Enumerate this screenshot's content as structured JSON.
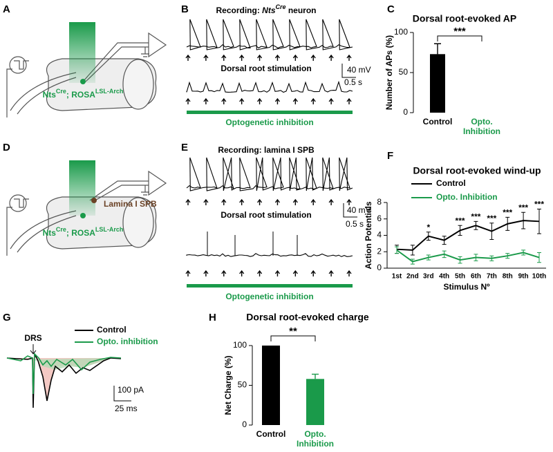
{
  "panel_labels": [
    "A",
    "B",
    "C",
    "D",
    "E",
    "F",
    "G",
    "H"
  ],
  "panel_a": {
    "genotype_parts": [
      "Nts",
      "Cre",
      "; ROSA",
      "LSL-Arch"
    ]
  },
  "panel_b": {
    "title_parts": [
      "Recording: ",
      "Nts",
      "Cre",
      " neuron"
    ],
    "stimulation": "Dorsal root stimulation",
    "scale_v": "40 mV",
    "scale_t": "0.5 s",
    "inhibition": "Optogenetic inhibition"
  },
  "panel_d": {
    "genotype_parts": [
      "Nts",
      "Cre",
      "; ROSA",
      "LSL-Arch"
    ],
    "cell": "Lamina I SPB"
  },
  "panel_e": {
    "title": "Recording: lamina I SPB",
    "stimulation": "Dorsal root stimulation",
    "scale_v": "40 mV",
    "scale_t": "0.5 s",
    "inhibition": "Optogenetic inhibition"
  },
  "panel_g": {
    "marker": "DRS",
    "legend": [
      "Control",
      "Opto. inhibition"
    ],
    "scale_i": "100 pA",
    "scale_t": "25 ms"
  },
  "chart_data": [
    {
      "type": "bar",
      "title": "Dorsal root-evoked AP",
      "y_label": "Number of APs (%)",
      "categories": [
        "Control",
        "Opto. Inhibition"
      ],
      "values": [
        73,
        0
      ],
      "errors": [
        13,
        null
      ],
      "colors": [
        "#000000",
        "#1a9a4a"
      ],
      "ylim": [
        0,
        100
      ],
      "yticks": [
        0,
        50,
        100
      ],
      "annotation": "***"
    },
    {
      "type": "line",
      "title": "Dorsal root-evoked wind-up",
      "y_label": "Action Potentials",
      "x_label": "Stimulus Nº",
      "categories": [
        "1st",
        "2nd",
        "3rd",
        "4th",
        "5th",
        "6th",
        "7th",
        "8th",
        "9th",
        "10th"
      ],
      "series": [
        {
          "name": "Control",
          "color": "#000000",
          "values": [
            2.3,
            2.2,
            3.9,
            3.4,
            4.6,
            5.2,
            4.5,
            5.4,
            5.8,
            5.7
          ],
          "errors": [
            0.5,
            0.6,
            0.5,
            0.5,
            0.6,
            0.5,
            1.0,
            0.8,
            1.0,
            1.5
          ]
        },
        {
          "name": "Opto. Inhibition",
          "color": "#1a9a4a",
          "values": [
            2.2,
            0.8,
            1.3,
            1.7,
            1.0,
            1.3,
            1.2,
            1.5,
            1.9,
            1.3
          ],
          "errors": [
            0.4,
            0.3,
            0.3,
            0.4,
            0.4,
            0.4,
            0.3,
            0.3,
            0.3,
            0.6
          ]
        }
      ],
      "annotations": [
        null,
        null,
        "*",
        null,
        "***",
        "***",
        "***",
        "***",
        "***",
        "***"
      ],
      "ylim": [
        0,
        8
      ],
      "yticks": [
        0,
        2,
        4,
        6,
        8
      ]
    },
    {
      "type": "bar",
      "title": "Dorsal root-evoked charge",
      "y_label": "Net Charge (%)",
      "categories": [
        "Control",
        "Opto. Inhibition"
      ],
      "values": [
        100,
        58
      ],
      "errors": [
        null,
        6
      ],
      "colors": [
        "#000000",
        "#1a9a4a"
      ],
      "ylim": [
        0,
        100
      ],
      "yticks": [
        0,
        50,
        100
      ],
      "annotation": "**"
    }
  ]
}
